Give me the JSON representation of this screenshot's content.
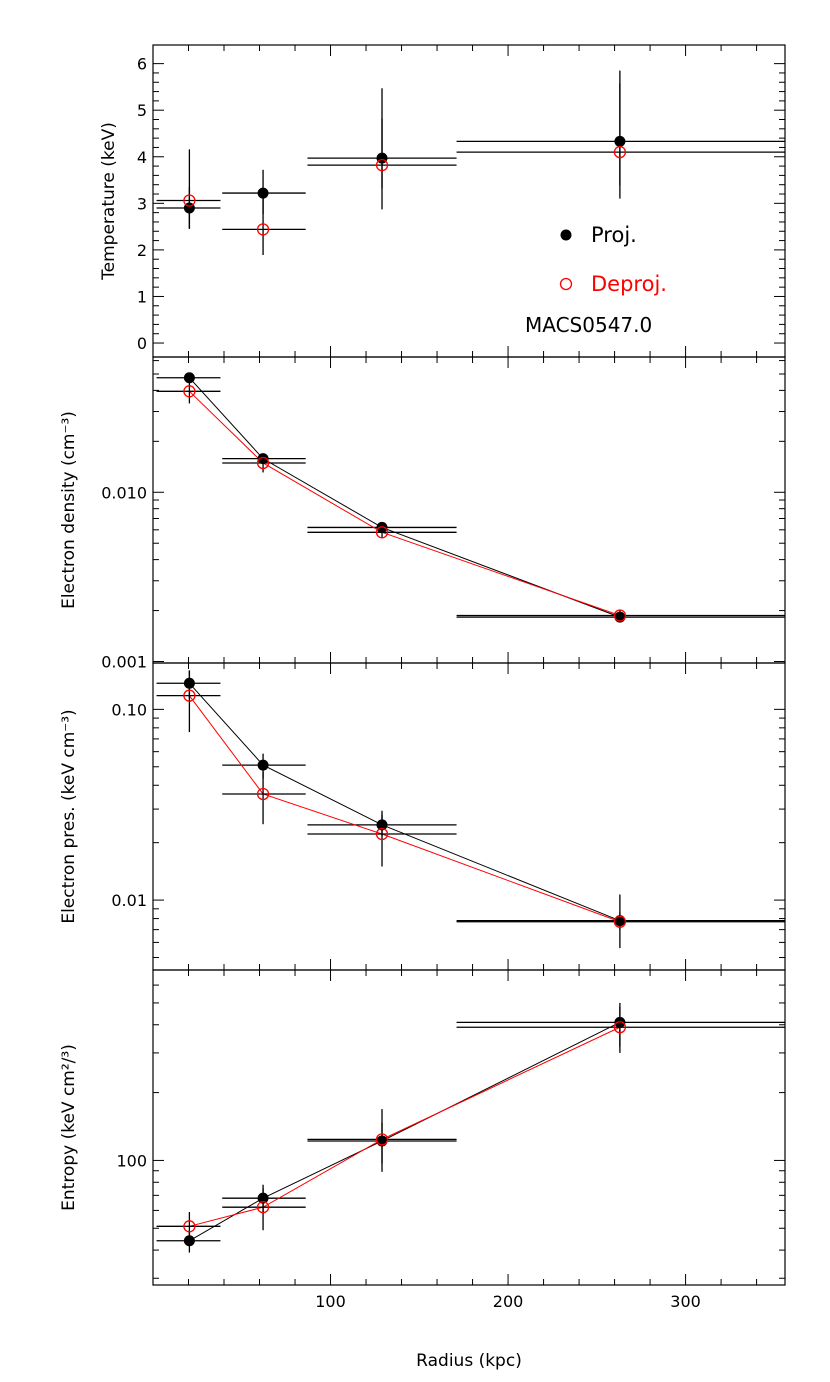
{
  "chart_data": {
    "type": "scatter",
    "xlabel": "Radius (kpc)",
    "xlim": [
      0,
      356
    ],
    "xticks": [
      100,
      200,
      300
    ],
    "xtick_labels": [
      "100",
      "200",
      "300"
    ],
    "colors": {
      "proj": "#000000",
      "deproj": "#ff0000"
    },
    "panels": [
      {
        "ylabel": "Temperature (keV)",
        "yscale": "linear",
        "ylim": [
          -0.3,
          6.4
        ],
        "yticks": [
          0,
          1,
          2,
          3,
          4,
          5,
          6
        ],
        "ytick_labels": [
          "0",
          "1",
          "2",
          "3",
          "4",
          "5",
          "6"
        ],
        "connect_lines": false,
        "legend": {
          "position": "right",
          "proj_label": "Proj.",
          "deproj_label": "Deproj."
        },
        "annotation": "MACS0547.0",
        "series": [
          {
            "name": "Proj.",
            "marker": "filled-circle",
            "x": [
              20.5,
              62,
              129,
              263
            ],
            "xerr_low": [
              18.5,
              23,
              42,
              92
            ],
            "xerr_high": [
              17.5,
              24,
              42,
              93
            ],
            "y": [
              2.9,
              3.22,
              3.97,
              4.33
            ],
            "yerr_low": [
              0.45,
              0.45,
              0.65,
              0.95
            ],
            "yerr_high": [
              0.45,
              0.5,
              0.85,
              1.25
            ]
          },
          {
            "name": "Deproj.",
            "marker": "open-circle",
            "x": [
              20.5,
              62,
              129,
              263
            ],
            "xerr_low": [
              18.5,
              23,
              42,
              92
            ],
            "xerr_high": [
              17.5,
              24,
              42,
              93
            ],
            "y": [
              3.06,
              2.44,
              3.82,
              4.1
            ],
            "yerr_low": [
              0.6,
              0.55,
              0.95,
              1.0
            ],
            "yerr_high": [
              1.1,
              0.8,
              1.65,
              1.75
            ]
          }
        ]
      },
      {
        "ylabel": "Electron density (cm⁻³)",
        "yscale": "log",
        "ylim": [
          0.00098,
          0.063
        ],
        "yticks": [
          0.001,
          0.01
        ],
        "ytick_labels": [
          "0.001",
          "0.010"
        ],
        "connect_lines": true,
        "series": [
          {
            "name": "Proj.",
            "marker": "filled-circle",
            "x": [
              20.5,
              62,
              129,
              263
            ],
            "xerr_low": [
              18.5,
              23,
              42,
              92
            ],
            "xerr_high": [
              17.5,
              24,
              42,
              93
            ],
            "y": [
              0.0475,
              0.0158,
              0.0062,
              0.00183
            ],
            "yerr_low": [
              0.002,
              0.0007,
              0.0003,
              0.0001
            ],
            "yerr_high": [
              0.002,
              0.0007,
              0.0003,
              0.0001
            ]
          },
          {
            "name": "Deproj.",
            "marker": "open-circle",
            "x": [
              20.5,
              62,
              129,
              263
            ],
            "xerr_low": [
              18.5,
              23,
              42,
              92
            ],
            "xerr_high": [
              17.5,
              24,
              42,
              93
            ],
            "y": [
              0.0395,
              0.0149,
              0.0058,
              0.00187
            ],
            "yerr_low": [
              0.006,
              0.0018,
              0.0004,
              0.00015
            ],
            "yerr_high": [
              0.006,
              0.0018,
              0.0004,
              0.00015
            ]
          }
        ]
      },
      {
        "ylabel": "Electron pres. (keV cm⁻³)",
        "yscale": "log",
        "ylim": [
          0.0043,
          0.175
        ],
        "yticks": [
          0.01,
          0.1
        ],
        "ytick_labels": [
          "0.01",
          "0.10"
        ],
        "connect_lines": true,
        "series": [
          {
            "name": "Proj.",
            "marker": "filled-circle",
            "x": [
              20.5,
              62,
              129,
              263
            ],
            "xerr_low": [
              18.5,
              23,
              42,
              92
            ],
            "xerr_high": [
              17.5,
              24,
              42,
              93
            ],
            "y": [
              0.137,
              0.051,
              0.0248,
              0.0078
            ],
            "yerr_low": [
              0.023,
              0.0076,
              0.0032,
              0.0008
            ],
            "yerr_high": [
              0.023,
              0.0076,
              0.0032,
              0.0008
            ]
          },
          {
            "name": "Deproj.",
            "marker": "open-circle",
            "x": [
              20.5,
              62,
              129,
              263
            ],
            "xerr_low": [
              18.5,
              23,
              42,
              92
            ],
            "xerr_high": [
              17.5,
              24,
              42,
              93
            ],
            "y": [
              0.118,
              0.036,
              0.0222,
              0.0077
            ],
            "yerr_low": [
              0.042,
              0.011,
              0.0072,
              0.0021
            ],
            "yerr_high": [
              0.042,
              0.011,
              0.0072,
              0.003
            ]
          }
        ]
      },
      {
        "ylabel": "Entropy (keV cm²/³)",
        "yscale": "log",
        "ylim": [
          28,
          700
        ],
        "yticks": [
          100
        ],
        "ytick_labels": [
          "100"
        ],
        "connect_lines": true,
        "series": [
          {
            "name": "Proj.",
            "marker": "filled-circle",
            "x": [
              20.5,
              62,
              129,
              263
            ],
            "xerr_low": [
              18.5,
              23,
              42,
              92
            ],
            "xerr_high": [
              17.5,
              24,
              42,
              93
            ],
            "y": [
              44,
              68,
              122,
              410
            ],
            "yerr_low": [
              5,
              10,
              25,
              90
            ],
            "yerr_high": [
              5,
              10,
              25,
              90
            ]
          },
          {
            "name": "Deproj.",
            "marker": "open-circle",
            "x": [
              20.5,
              62,
              129,
              263
            ],
            "xerr_low": [
              18.5,
              23,
              42,
              92
            ],
            "xerr_high": [
              17.5,
              24,
              42,
              93
            ],
            "y": [
              51,
              62,
              124,
              390
            ],
            "yerr_low": [
              8,
              13,
              35,
              90
            ],
            "yerr_high": [
              8,
              13,
              45,
              90
            ]
          }
        ]
      }
    ]
  }
}
